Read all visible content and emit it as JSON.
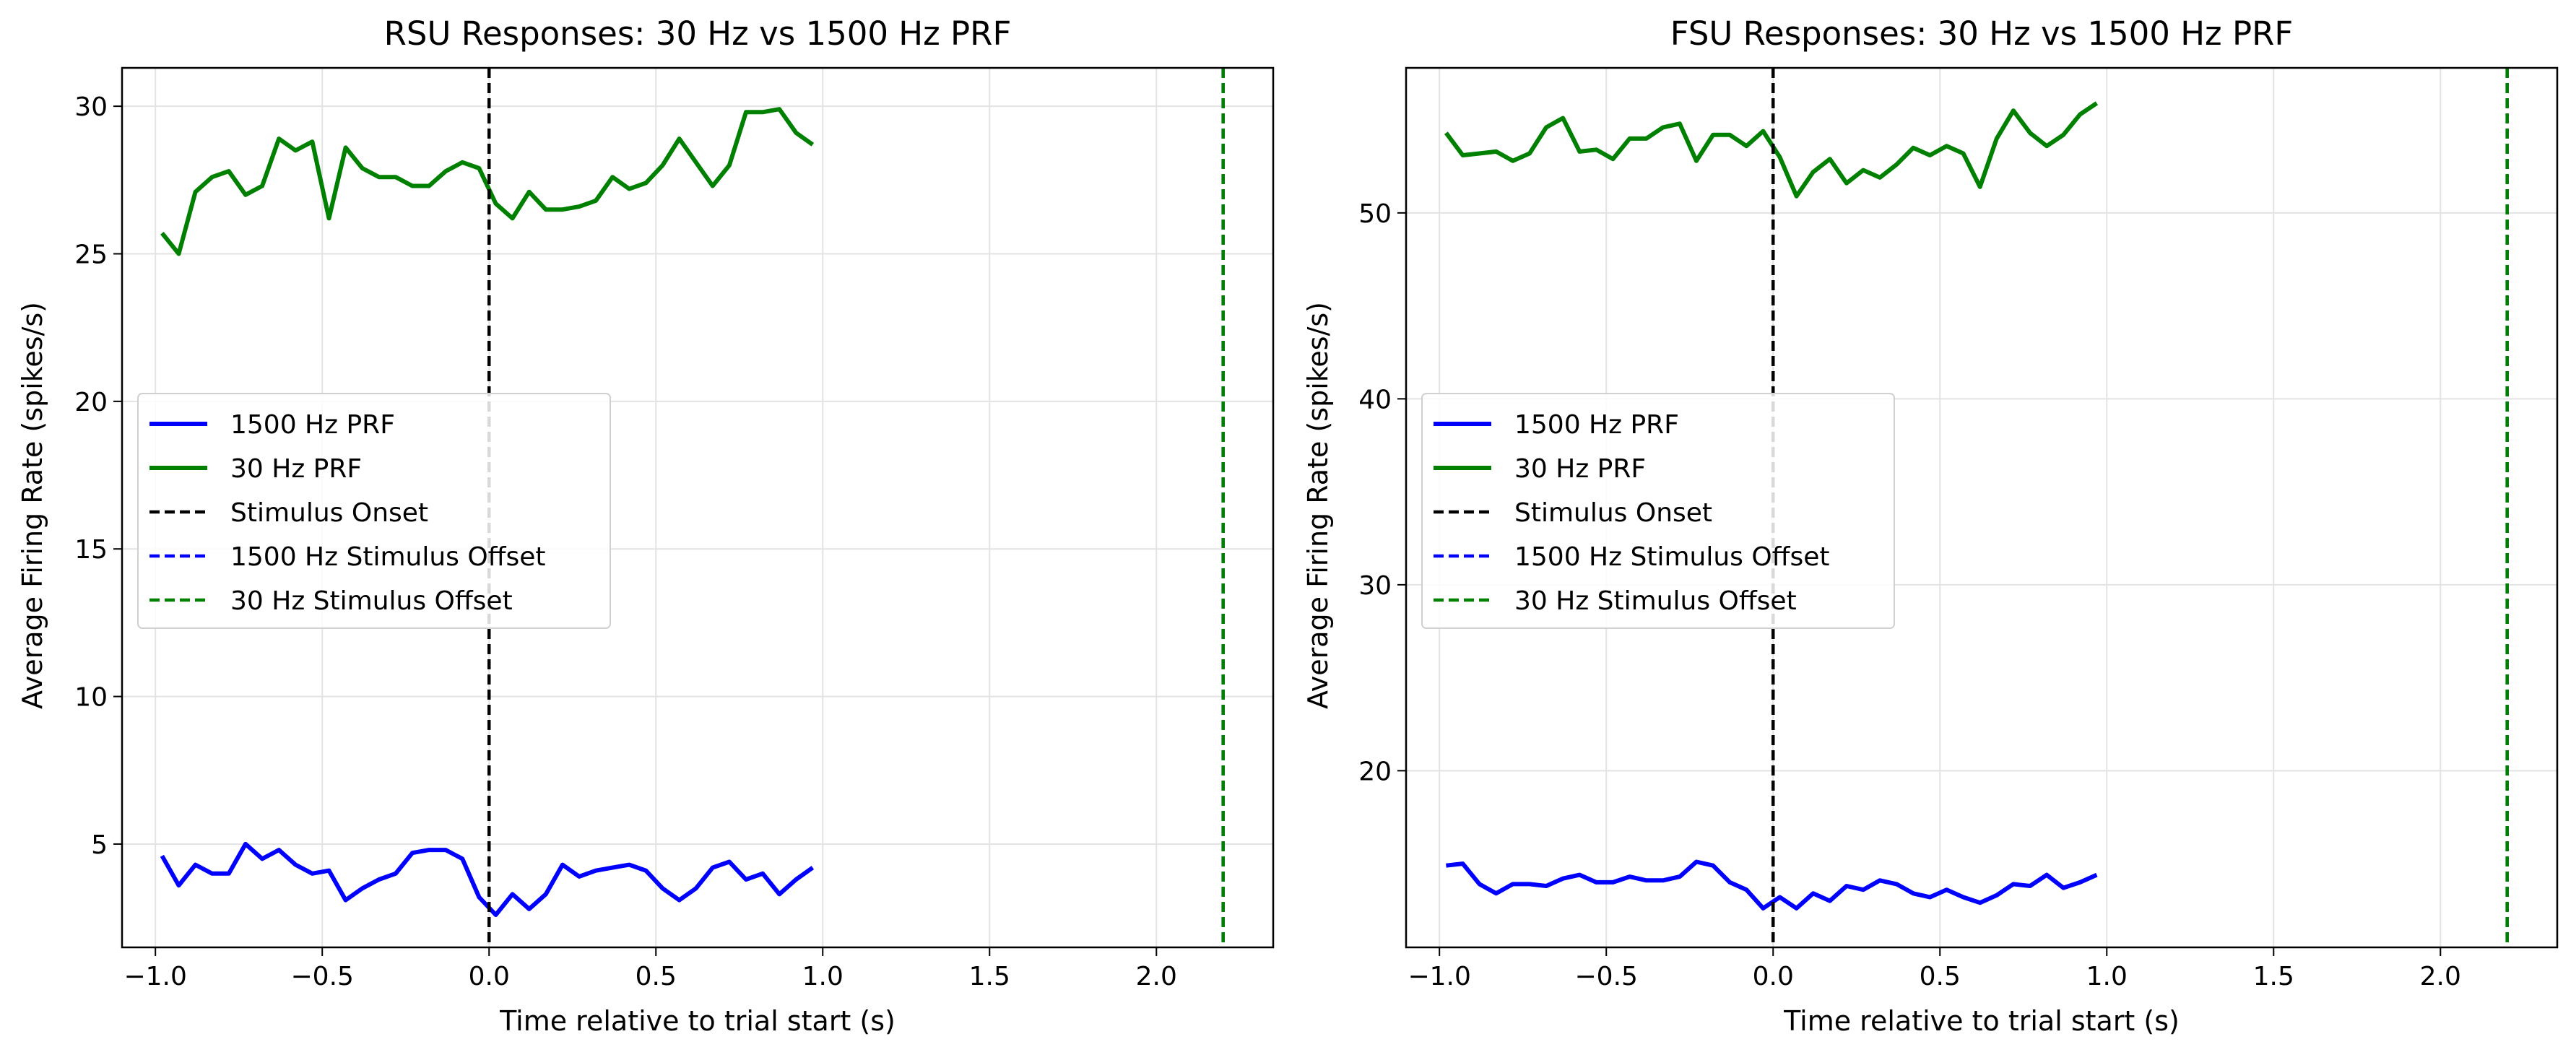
{
  "chart_data": [
    {
      "type": "line",
      "title": "RSU Responses: 30 Hz vs 1500 Hz PRF",
      "xlabel": "Time relative to trial start (s)",
      "ylabel": "Average Firing Rate (spikes/s)",
      "xlim": [
        -1.1,
        2.35
      ],
      "ylim": [
        1.5,
        31.3
      ],
      "xticks": [
        -1.0,
        -0.5,
        0.0,
        0.5,
        1.0,
        1.5,
        2.0
      ],
      "xtick_labels": [
        "−1.0",
        "−0.5",
        "0.0",
        "0.5",
        "1.0",
        "1.5",
        "2.0"
      ],
      "yticks": [
        5,
        10,
        15,
        20,
        25,
        30
      ],
      "ytick_labels": [
        "5",
        "10",
        "15",
        "20",
        "25",
        "30"
      ],
      "grid": true,
      "legend_position": "center-left",
      "x": [
        -0.98,
        -0.93,
        -0.88,
        -0.83,
        -0.78,
        -0.73,
        -0.68,
        -0.63,
        -0.58,
        -0.53,
        -0.48,
        -0.43,
        -0.38,
        -0.33,
        -0.28,
        -0.23,
        -0.18,
        -0.13,
        -0.08,
        -0.03,
        0.02,
        0.07,
        0.12,
        0.17,
        0.22,
        0.27,
        0.32,
        0.37,
        0.42,
        0.47,
        0.52,
        0.57,
        0.62,
        0.67,
        0.72,
        0.77,
        0.82,
        0.87,
        0.92,
        0.97
      ],
      "series": [
        {
          "name": "1500 Hz PRF",
          "color": "#0000ff",
          "style": "solid",
          "values": [
            4.6,
            3.6,
            4.3,
            4.0,
            4.0,
            5.0,
            4.5,
            4.8,
            4.3,
            4.0,
            4.1,
            3.1,
            3.5,
            3.8,
            4.0,
            4.7,
            4.8,
            4.8,
            4.5,
            3.2,
            2.6,
            3.3,
            2.8,
            3.3,
            4.3,
            3.9,
            4.1,
            4.2,
            4.3,
            4.1,
            3.5,
            3.1,
            3.5,
            4.2,
            4.4,
            3.8,
            4.0,
            3.3,
            3.8,
            4.2
          ]
        },
        {
          "name": "30 Hz PRF",
          "color": "#008000",
          "style": "solid",
          "values": [
            25.7,
            25.0,
            27.1,
            27.6,
            27.8,
            27.0,
            27.3,
            28.9,
            28.5,
            28.8,
            26.2,
            28.6,
            27.9,
            27.6,
            27.6,
            27.3,
            27.3,
            27.8,
            28.1,
            27.9,
            26.7,
            26.2,
            27.1,
            26.5,
            26.5,
            26.6,
            26.8,
            27.6,
            27.2,
            27.4,
            28.0,
            28.9,
            28.1,
            27.3,
            28.0,
            29.8,
            29.8,
            29.9,
            29.1,
            28.7
          ]
        }
      ],
      "vlines": [
        {
          "name": "Stimulus Onset",
          "x": 0.0,
          "color": "#000000",
          "style": "dashed"
        },
        {
          "name": "1500 Hz Stimulus Offset",
          "x": 2.2,
          "color": "#0000ff",
          "style": "dashed"
        },
        {
          "name": "30 Hz Stimulus Offset",
          "x": 2.2,
          "color": "#008000",
          "style": "dashed"
        }
      ]
    },
    {
      "type": "line",
      "title": "FSU Responses: 30 Hz vs 1500 Hz PRF",
      "xlabel": "Time relative to trial start (s)",
      "ylabel": "Average Firing Rate (spikes/s)",
      "xlim": [
        -1.1,
        2.35
      ],
      "ylim": [
        10.5,
        57.8
      ],
      "xticks": [
        -1.0,
        -0.5,
        0.0,
        0.5,
        1.0,
        1.5,
        2.0
      ],
      "xtick_labels": [
        "−1.0",
        "−0.5",
        "0.0",
        "0.5",
        "1.0",
        "1.5",
        "2.0"
      ],
      "yticks": [
        20,
        30,
        40,
        50
      ],
      "ytick_labels": [
        "20",
        "30",
        "40",
        "50"
      ],
      "grid": true,
      "legend_position": "center-left",
      "x": [
        -0.98,
        -0.93,
        -0.88,
        -0.83,
        -0.78,
        -0.73,
        -0.68,
        -0.63,
        -0.58,
        -0.53,
        -0.48,
        -0.43,
        -0.38,
        -0.33,
        -0.28,
        -0.23,
        -0.18,
        -0.13,
        -0.08,
        -0.03,
        0.02,
        0.07,
        0.12,
        0.17,
        0.22,
        0.27,
        0.32,
        0.37,
        0.42,
        0.47,
        0.52,
        0.57,
        0.62,
        0.67,
        0.72,
        0.77,
        0.82,
        0.87,
        0.92,
        0.97
      ],
      "series": [
        {
          "name": "1500 Hz PRF",
          "color": "#0000ff",
          "style": "solid",
          "values": [
            14.9,
            15.0,
            13.9,
            13.4,
            13.9,
            13.9,
            13.8,
            14.2,
            14.4,
            14.0,
            14.0,
            14.3,
            14.1,
            14.1,
            14.3,
            15.1,
            14.9,
            14.0,
            13.6,
            12.6,
            13.2,
            12.6,
            13.4,
            13.0,
            13.8,
            13.6,
            14.1,
            13.9,
            13.4,
            13.2,
            13.6,
            13.2,
            12.9,
            13.3,
            13.9,
            13.8,
            14.4,
            13.7,
            14.0,
            14.4
          ]
        },
        {
          "name": "30 Hz PRF",
          "color": "#008000",
          "style": "solid",
          "values": [
            54.3,
            53.1,
            53.2,
            53.3,
            52.8,
            53.2,
            54.6,
            55.1,
            53.3,
            53.4,
            52.9,
            54.0,
            54.0,
            54.6,
            54.8,
            52.8,
            54.2,
            54.2,
            53.6,
            54.4,
            53.0,
            50.9,
            52.2,
            52.9,
            51.6,
            52.3,
            51.9,
            52.6,
            53.5,
            53.1,
            53.6,
            53.2,
            51.4,
            54.0,
            55.5,
            54.3,
            53.6,
            54.2,
            55.3,
            55.9
          ]
        }
      ],
      "vlines": [
        {
          "name": "Stimulus Onset",
          "x": 0.0,
          "color": "#000000",
          "style": "dashed"
        },
        {
          "name": "1500 Hz Stimulus Offset",
          "x": 2.2,
          "color": "#0000ff",
          "style": "dashed"
        },
        {
          "name": "30 Hz Stimulus Offset",
          "x": 2.2,
          "color": "#008000",
          "style": "dashed"
        }
      ]
    }
  ]
}
